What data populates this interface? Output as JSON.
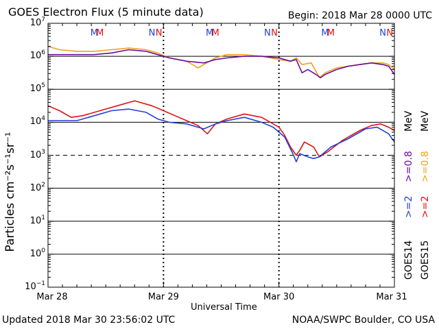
{
  "header": {
    "title": "GOES Electron Flux (5 minute data)",
    "begin": "Begin: 2018 Mar 28 0000 UTC"
  },
  "footer": {
    "updated": "Updated 2018 Mar 30 23:56:02 UTC",
    "credit": "NOAA/SWPC Boulder, CO USA"
  },
  "colors": {
    "goes14_2mev": "#1f3fd6",
    "goes15_2mev": "#e01010",
    "goes14_08mev": "#6a0a9a",
    "goes15_08mev": "#f0a020",
    "grid": "#000000"
  },
  "chart_data": {
    "type": "line",
    "title": "GOES Electron Flux (5 minute data)",
    "xlabel": "Universal Time",
    "ylabel": "Particles cm⁻²s⁻¹sr⁻¹",
    "yscale": "log",
    "ylim_exp": [
      -1,
      7
    ],
    "y_tick_exponents": [
      7,
      6,
      5,
      4,
      3,
      2,
      1,
      0,
      -1
    ],
    "y_tick_base": "10",
    "xlim": [
      0,
      3
    ],
    "x_tick_labels": [
      "Mar 28",
      "Mar 29",
      "Mar 30",
      "Mar 31"
    ],
    "dashed_threshold_exp": 3,
    "top_markers": [
      {
        "day": 0.4,
        "label": "M",
        "color": "#1f3fd6"
      },
      {
        "day": 0.45,
        "label": "M",
        "color": "#e01010"
      },
      {
        "day": 0.9,
        "label": "N",
        "color": "#1f3fd6"
      },
      {
        "day": 0.96,
        "label": "N",
        "color": "#e01010"
      },
      {
        "day": 1.4,
        "label": "M",
        "color": "#1f3fd6"
      },
      {
        "day": 1.45,
        "label": "M",
        "color": "#e01010"
      },
      {
        "day": 1.9,
        "label": "N",
        "color": "#1f3fd6"
      },
      {
        "day": 1.96,
        "label": "N",
        "color": "#e01010"
      },
      {
        "day": 2.4,
        "label": "M",
        "color": "#1f3fd6"
      },
      {
        "day": 2.45,
        "label": "M",
        "color": "#e01010"
      },
      {
        "day": 2.9,
        "label": "N",
        "color": "#1f3fd6"
      },
      {
        "day": 2.96,
        "label": "N",
        "color": "#e01010"
      }
    ],
    "legend": {
      "goes14": "GOES14",
      "goes15": "GOES15",
      "ge2_14": ">=2",
      "ge2_15": ">=2",
      "ge08_14": ">=0.8",
      "ge08_15": ">=0.8",
      "mev": "MeV"
    },
    "series": [
      {
        "name": "GOES15 >=0.8 MeV",
        "color": "#f0a020",
        "x": [
          0,
          0.1,
          0.25,
          0.4,
          0.55,
          0.7,
          0.85,
          0.95,
          1.05,
          1.2,
          1.3,
          1.4,
          1.45,
          1.55,
          1.7,
          1.85,
          2.0,
          2.1,
          2.15,
          2.2,
          2.28,
          2.32,
          2.35,
          2.4,
          2.5,
          2.6,
          2.7,
          2.8,
          2.9,
          2.95,
          3.0
        ],
        "y": [
          6.3,
          6.2,
          6.15,
          6.15,
          6.2,
          6.25,
          6.2,
          6.1,
          5.95,
          5.85,
          5.65,
          5.85,
          5.95,
          6.05,
          6.05,
          6.0,
          5.9,
          5.85,
          5.95,
          5.75,
          5.8,
          5.55,
          5.35,
          5.5,
          5.65,
          5.7,
          5.75,
          5.8,
          5.8,
          5.75,
          5.6
        ]
      },
      {
        "name": "GOES14 >=0.8 MeV",
        "color": "#6a0a9a",
        "x": [
          0,
          0.1,
          0.25,
          0.4,
          0.55,
          0.7,
          0.85,
          0.95,
          1.05,
          1.2,
          1.35,
          1.45,
          1.55,
          1.7,
          1.85,
          2.0,
          2.1,
          2.15,
          2.2,
          2.25,
          2.32,
          2.36,
          2.4,
          2.5,
          2.6,
          2.7,
          2.8,
          2.9,
          2.95,
          3.0
        ],
        "y": [
          6.05,
          6.05,
          6.05,
          6.05,
          6.1,
          6.2,
          6.15,
          6.05,
          5.95,
          5.85,
          5.8,
          5.9,
          5.95,
          6.0,
          6.0,
          5.95,
          5.85,
          5.9,
          5.5,
          5.6,
          5.45,
          5.35,
          5.45,
          5.6,
          5.7,
          5.75,
          5.8,
          5.75,
          5.7,
          5.45
        ]
      },
      {
        "name": "GOES15 >=2 MeV",
        "color": "#e01010",
        "x": [
          0,
          0.1,
          0.2,
          0.3,
          0.45,
          0.6,
          0.75,
          0.9,
          1.0,
          1.1,
          1.2,
          1.3,
          1.38,
          1.45,
          1.55,
          1.7,
          1.85,
          2.0,
          2.05,
          2.1,
          2.15,
          2.18,
          2.22,
          2.3,
          2.35,
          2.42,
          2.55,
          2.7,
          2.8,
          2.88,
          2.95,
          3.0
        ],
        "y": [
          4.5,
          4.35,
          4.15,
          4.2,
          4.35,
          4.5,
          4.65,
          4.5,
          4.35,
          4.2,
          4.05,
          3.9,
          3.65,
          3.95,
          4.1,
          4.25,
          4.15,
          3.85,
          3.6,
          3.25,
          3.0,
          3.15,
          3.4,
          3.25,
          2.95,
          3.1,
          3.45,
          3.75,
          3.9,
          3.95,
          3.85,
          3.75
        ]
      },
      {
        "name": "GOES14 >=2 MeV",
        "color": "#1f3fd6",
        "x": [
          0,
          0.1,
          0.25,
          0.4,
          0.55,
          0.7,
          0.85,
          0.95,
          1.05,
          1.2,
          1.35,
          1.45,
          1.55,
          1.7,
          1.85,
          1.95,
          2.05,
          2.12,
          2.15,
          2.18,
          2.25,
          2.3,
          2.35,
          2.45,
          2.6,
          2.75,
          2.85,
          2.95,
          3.0
        ],
        "y": [
          4.05,
          4.05,
          4.05,
          4.2,
          4.35,
          4.4,
          4.3,
          4.1,
          4.0,
          3.95,
          3.8,
          3.95,
          4.05,
          4.15,
          4.0,
          3.85,
          3.55,
          3.05,
          2.8,
          3.05,
          2.95,
          2.9,
          2.95,
          3.25,
          3.5,
          3.8,
          3.85,
          3.65,
          3.4
        ]
      }
    ]
  }
}
